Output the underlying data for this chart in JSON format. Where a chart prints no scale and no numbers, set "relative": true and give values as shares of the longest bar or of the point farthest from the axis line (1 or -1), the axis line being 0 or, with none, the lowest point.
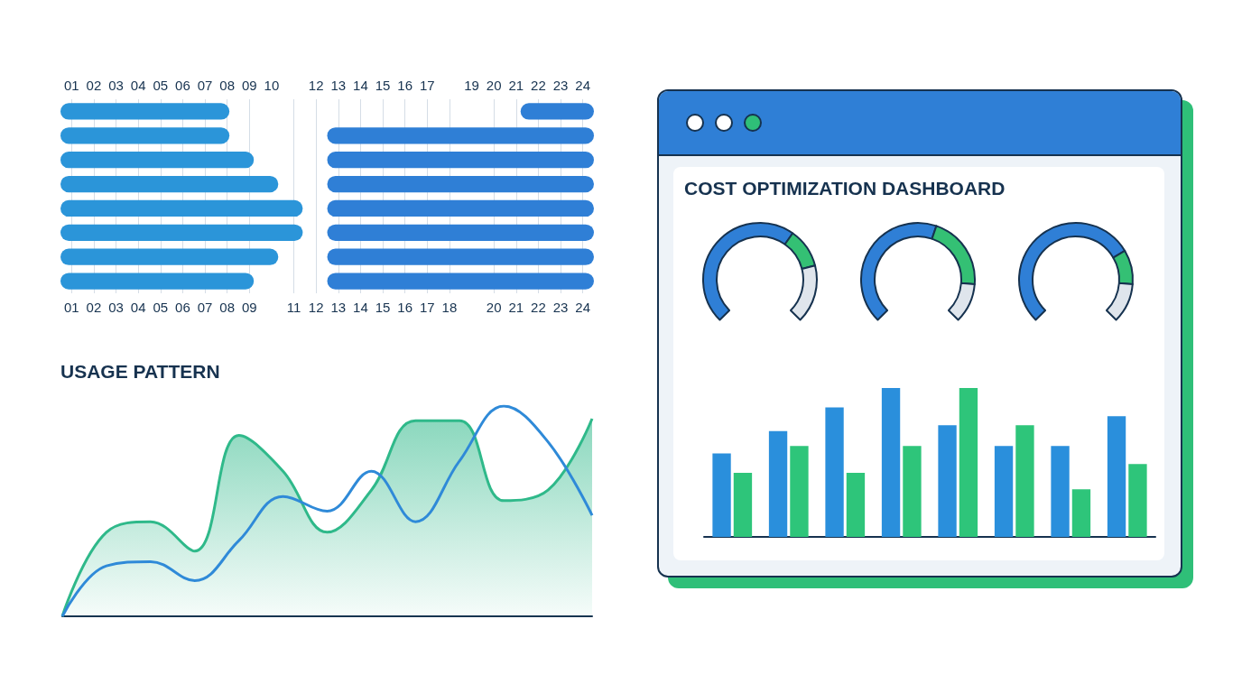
{
  "chart_data": [
    {
      "type": "bar",
      "orientation": "horizontal",
      "categories": [
        null,
        null,
        null,
        null,
        null,
        null,
        null,
        null
      ],
      "xlim": [
        0.5,
        24.5
      ],
      "xticks": [
        {
          "value": 1,
          "label": "01"
        },
        {
          "value": 2,
          "label": "02"
        },
        {
          "value": 3,
          "label": "03"
        },
        {
          "value": 4,
          "label": "04"
        },
        {
          "value": 5,
          "label": "05"
        },
        {
          "value": 6,
          "label": "06"
        },
        {
          "value": 7,
          "label": "07"
        },
        {
          "value": 8,
          "label": "08"
        },
        {
          "value": 9,
          "label": "09"
        },
        11,
        12,
        13,
        14,
        15,
        16,
        17,
        18,
        20,
        21,
        22,
        23,
        24
      ],
      "x2lim": [
        0.5,
        24.5
      ],
      "x2ticks": [
        {
          "value": 1,
          "label": "01"
        },
        {
          "value": 2,
          "label": "02"
        },
        {
          "value": 3,
          "label": "03"
        },
        {
          "value": 4,
          "label": "04"
        },
        {
          "value": 5,
          "label": "05"
        },
        {
          "value": 6,
          "label": "06"
        },
        {
          "value": 7,
          "label": "07"
        },
        {
          "value": 8,
          "label": "08"
        },
        {
          "value": 9,
          "label": "09"
        },
        10,
        12,
        13,
        14,
        15,
        16,
        17,
        19,
        20,
        21,
        22,
        23,
        24
      ],
      "grid": "x",
      "series": [
        {
          "color": "#2b95d9",
          "base": [
            0.5,
            0.5,
            0.5,
            0.5,
            0.5,
            0.5,
            0.5,
            0.5
          ],
          "values": [
            7.6,
            7.6,
            8.7,
            9.8,
            10.9,
            10.9,
            9.8,
            8.7
          ]
        },
        {
          "color": "#2f7fd6",
          "base": [
            21.2,
            12.5,
            12.5,
            12.5,
            12.5,
            12.5,
            12.5,
            12.5
          ],
          "values": [
            3.3,
            12,
            12,
            12,
            12,
            12,
            12,
            12
          ]
        }
      ]
    },
    {
      "type": "line",
      "title": "USAGE PATTERN",
      "relative": true,
      "categories": [
        null,
        null,
        null,
        null,
        null,
        null,
        null,
        null,
        null,
        null,
        null,
        null,
        null
      ],
      "series": [
        {
          "type": "area",
          "color": "#2fb98a",
          "values": [
            0,
            0.4,
            0.45,
            0.31,
            0.86,
            0.69,
            0.4,
            0.6,
            0.93,
            0.93,
            0.55,
            0.6,
            0.94
          ]
        },
        {
          "type": "line",
          "color": "#2f8ad8",
          "values": [
            0,
            0.24,
            0.26,
            0.17,
            0.36,
            0.57,
            0.5,
            0.69,
            0.45,
            0.74,
            1,
            0.83,
            0.48
          ]
        }
      ]
    },
    {
      "type": "donut",
      "title": "COST OPTIMIZATION DASHBOARD",
      "categories": [
        null,
        null,
        null
      ],
      "values": [
        63,
        15,
        22
      ],
      "colors": [
        "#2f7fd6",
        "#34c074",
        "#dfe5ec"
      ]
    },
    {
      "type": "donut",
      "categories": [
        null,
        null,
        null
      ],
      "values": [
        57,
        28,
        15
      ],
      "colors": [
        "#2f7fd6",
        "#34c074",
        "#dfe5ec"
      ]
    },
    {
      "type": "donut",
      "categories": [
        null,
        null,
        null
      ],
      "values": [
        72,
        13,
        15
      ],
      "colors": [
        "#2f7fd6",
        "#34c074",
        "#dfe5ec"
      ]
    },
    {
      "type": "bar",
      "relative": true,
      "categories": [
        null,
        null,
        null,
        null,
        null,
        null,
        null,
        null
      ],
      "series": [
        {
          "color": "#2a8fdc",
          "values": [
            0.56,
            0.71,
            0.87,
            1,
            0.75,
            0.61,
            0.61,
            0.81
          ]
        },
        {
          "color": "#2ec57a",
          "values": [
            0.43,
            0.61,
            0.43,
            0.61,
            1,
            0.75,
            0.32,
            0.49
          ]
        }
      ]
    }
  ]
}
